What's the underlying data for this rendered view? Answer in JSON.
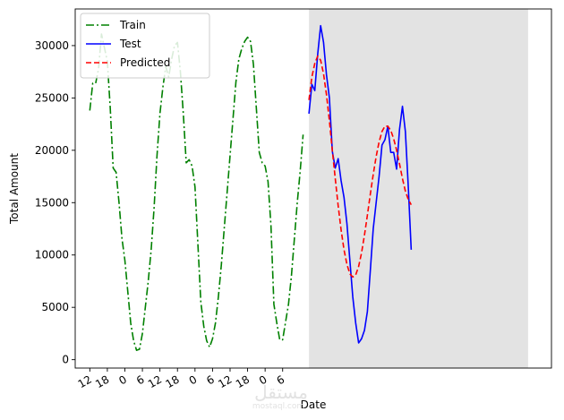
{
  "chart_data": {
    "type": "line",
    "xlabel": "Date",
    "ylabel": "Total Amount",
    "ylim": [
      -800,
      33500
    ],
    "xlim": [
      -5,
      158
    ],
    "grid": false,
    "legend_position": "top-left",
    "x_ticks": [
      {
        "x": 0,
        "label": "12"
      },
      {
        "x": 6,
        "label": "18"
      },
      {
        "x": 12,
        "label": "0"
      },
      {
        "x": 18,
        "label": "6"
      },
      {
        "x": 24,
        "label": "12"
      },
      {
        "x": 30,
        "label": "18"
      },
      {
        "x": 36,
        "label": "0"
      },
      {
        "x": 42,
        "label": "6"
      },
      {
        "x": 48,
        "label": "12"
      },
      {
        "x": 54,
        "label": "18"
      },
      {
        "x": 60,
        "label": "0"
      },
      {
        "x": 66,
        "label": "6"
      }
    ],
    "y_ticks": [
      0,
      5000,
      10000,
      15000,
      20000,
      25000,
      30000
    ],
    "shaded_region": {
      "x_start": 75,
      "x_end": 150,
      "color": "#e3e3e3"
    },
    "series": [
      {
        "name": "Train",
        "color": "#008000",
        "style": "dashdot",
        "points": [
          [
            0,
            23800
          ],
          [
            1,
            26400
          ],
          [
            2,
            26400
          ],
          [
            3,
            27800
          ],
          [
            4,
            31100
          ],
          [
            5,
            29800
          ],
          [
            6,
            28500
          ],
          [
            7,
            24000
          ],
          [
            8,
            18300
          ],
          [
            9,
            17900
          ],
          [
            10,
            15000
          ],
          [
            11,
            11600
          ],
          [
            12,
            9500
          ],
          [
            13,
            6500
          ],
          [
            14,
            3500
          ],
          [
            15,
            1800
          ],
          [
            16,
            900
          ],
          [
            17,
            1000
          ],
          [
            18,
            2500
          ],
          [
            19,
            5000
          ],
          [
            20,
            7500
          ],
          [
            21,
            10500
          ],
          [
            22,
            14500
          ],
          [
            23,
            19500
          ],
          [
            24,
            23500
          ],
          [
            25,
            26000
          ],
          [
            26,
            28000
          ],
          [
            27,
            27000
          ],
          [
            28,
            28700
          ],
          [
            29,
            30000
          ],
          [
            30,
            30300
          ],
          [
            31,
            27500
          ],
          [
            32,
            23500
          ],
          [
            33,
            18800
          ],
          [
            34,
            19100
          ],
          [
            35,
            18500
          ],
          [
            36,
            16500
          ],
          [
            37,
            11000
          ],
          [
            38,
            5500
          ],
          [
            39,
            3200
          ],
          [
            40,
            1800
          ],
          [
            41,
            1200
          ],
          [
            42,
            2000
          ],
          [
            43,
            3500
          ],
          [
            44,
            6000
          ],
          [
            45,
            9000
          ],
          [
            46,
            12500
          ],
          [
            47,
            16000
          ],
          [
            48,
            19500
          ],
          [
            49,
            23000
          ],
          [
            50,
            26500
          ],
          [
            51,
            28700
          ],
          [
            52,
            29700
          ],
          [
            53,
            30400
          ],
          [
            54,
            30800
          ],
          [
            55,
            30400
          ],
          [
            56,
            28200
          ],
          [
            57,
            24000
          ],
          [
            58,
            19800
          ],
          [
            59,
            18800
          ],
          [
            60,
            18500
          ],
          [
            61,
            17000
          ],
          [
            62,
            12800
          ],
          [
            63,
            5300
          ],
          [
            64,
            3500
          ],
          [
            65,
            1900
          ],
          [
            66,
            1900
          ],
          [
            67,
            3600
          ],
          [
            68,
            5300
          ],
          [
            69,
            8000
          ],
          [
            70,
            11500
          ],
          [
            71,
            15000
          ],
          [
            72,
            18000
          ],
          [
            73,
            21500
          ]
        ]
      },
      {
        "name": "Test",
        "color": "#0000ff",
        "style": "solid",
        "points": [
          [
            75,
            23500
          ],
          [
            76,
            26300
          ],
          [
            77,
            25700
          ],
          [
            78,
            29200
          ],
          [
            79,
            31900
          ],
          [
            80,
            30300
          ],
          [
            81,
            27200
          ],
          [
            82,
            25000
          ],
          [
            83,
            19900
          ],
          [
            84,
            18300
          ],
          [
            85,
            19200
          ],
          [
            86,
            17100
          ],
          [
            87,
            15500
          ],
          [
            88,
            13000
          ],
          [
            89,
            9500
          ],
          [
            90,
            6000
          ],
          [
            91,
            3500
          ],
          [
            92,
            1600
          ],
          [
            93,
            2000
          ],
          [
            94,
            2800
          ],
          [
            95,
            4600
          ],
          [
            96,
            8500
          ],
          [
            97,
            12500
          ],
          [
            98,
            15000
          ],
          [
            99,
            17500
          ],
          [
            100,
            20500
          ],
          [
            101,
            21000
          ],
          [
            102,
            22300
          ],
          [
            103,
            19800
          ],
          [
            104,
            19800
          ],
          [
            105,
            18200
          ],
          [
            106,
            22000
          ],
          [
            107,
            24200
          ],
          [
            108,
            21800
          ],
          [
            109,
            16500
          ],
          [
            110,
            10500
          ]
        ]
      },
      {
        "name": "Predicted",
        "color": "#ff0000",
        "style": "dashed",
        "points": [
          [
            75,
            24800
          ],
          [
            76,
            27000
          ],
          [
            77,
            28300
          ],
          [
            78,
            29000
          ],
          [
            79,
            28600
          ],
          [
            80,
            27300
          ],
          [
            81,
            25300
          ],
          [
            82,
            22800
          ],
          [
            83,
            20000
          ],
          [
            84,
            17300
          ],
          [
            85,
            14700
          ],
          [
            86,
            12400
          ],
          [
            87,
            10500
          ],
          [
            88,
            9100
          ],
          [
            89,
            8200
          ],
          [
            90,
            7900
          ],
          [
            91,
            8100
          ],
          [
            92,
            8900
          ],
          [
            93,
            10200
          ],
          [
            94,
            11900
          ],
          [
            95,
            13800
          ],
          [
            96,
            15800
          ],
          [
            97,
            17700
          ],
          [
            98,
            19400
          ],
          [
            99,
            20800
          ],
          [
            100,
            21800
          ],
          [
            101,
            22300
          ],
          [
            102,
            22300
          ],
          [
            103,
            21900
          ],
          [
            104,
            21100
          ],
          [
            105,
            20000
          ],
          [
            106,
            18700
          ],
          [
            107,
            17300
          ],
          [
            108,
            16100
          ],
          [
            109,
            15300
          ],
          [
            110,
            14800
          ]
        ]
      }
    ]
  },
  "watermark": {
    "logo_text": "مستقل",
    "site_text": "mostaql.com"
  }
}
